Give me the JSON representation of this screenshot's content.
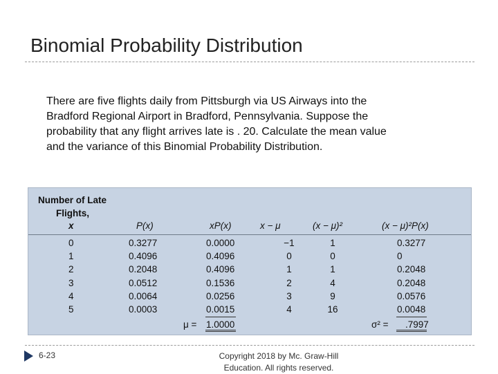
{
  "slide": {
    "title": "Binomial Probability Distribution",
    "body_lines": [
      "There are five flights daily from Pittsburgh via US Airways into the",
      "Bradford Regional Airport in Bradford, Pennsylvania. Suppose the",
      "probability that any flight arrives late is . 20.  Calculate the mean value",
      "and the variance of this Binomial Probability Distribution."
    ],
    "accent_color": "#1f3864"
  },
  "table": {
    "header": {
      "col1_line1": "Number of Late",
      "col1_line2": "Flights,",
      "col1_line3": "x",
      "col2": "P(x)",
      "col3": "xP(x)",
      "col4": "x − μ",
      "col5": "(x − μ)²",
      "col6": "(x − μ)²P(x)"
    },
    "rows": [
      {
        "x": "0",
        "p": "0.3277",
        "xp": "0.0000",
        "d": "−1",
        "d2": "1",
        "last": "0.3277"
      },
      {
        "x": "1",
        "p": "0.4096",
        "xp": "0.4096",
        "d": "0",
        "d2": "0",
        "last": "0"
      },
      {
        "x": "2",
        "p": "0.2048",
        "xp": "0.4096",
        "d": "1",
        "d2": "1",
        "last": "0.2048"
      },
      {
        "x": "3",
        "p": "0.0512",
        "xp": "0.1536",
        "d": "2",
        "d2": "4",
        "last": "0.2048"
      },
      {
        "x": "4",
        "p": "0.0064",
        "xp": "0.0256",
        "d": "3",
        "d2": "9",
        "last": "0.0576"
      },
      {
        "x": "5",
        "p": "0.0003",
        "xp": "0.0015",
        "d": "4",
        "d2": "16",
        "last": "0.0048"
      }
    ],
    "totals": {
      "mean_label": "μ =",
      "mean_value": "1.0000",
      "variance_label": "σ² =",
      "variance_value": ".7997"
    },
    "panel_color": "#c7d3e3"
  },
  "footer": {
    "slide_number": "6-23",
    "copyright_line1": "Copyright  2018 by Mc. Graw-Hill",
    "copyright_line2": "Education.  All rights reserved."
  }
}
